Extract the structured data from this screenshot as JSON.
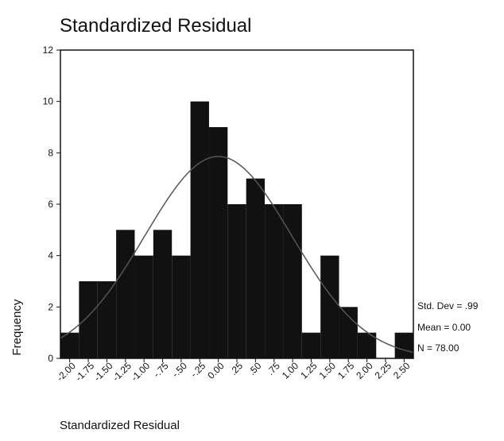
{
  "chart_data": {
    "type": "histogram",
    "title": "Standardized Residual",
    "x_label": "Standardized Residual",
    "y_label": "Frequency",
    "bins": [
      -2.125,
      -1.875,
      -1.625,
      -1.375,
      -1.125,
      -0.875,
      -0.625,
      -0.375,
      -0.125,
      0.125,
      0.375,
      0.625,
      0.875,
      1.125,
      1.375,
      1.625,
      1.875,
      2.125,
      2.375,
      2.625
    ],
    "values": [
      1,
      3,
      3,
      5,
      4,
      5,
      4,
      10,
      9,
      6,
      7,
      6,
      6,
      1,
      4,
      2,
      1,
      0,
      1
    ],
    "color": "#111111",
    "xlim": [
      -2.125,
      2.625
    ],
    "xticks": [
      {
        "value": -2,
        "label": "-2.00"
      },
      {
        "value": -1.75,
        "label": "-1.75"
      },
      {
        "value": -1.5,
        "label": "-1.50"
      },
      {
        "value": -1.25,
        "label": "-1.25"
      },
      {
        "value": -1,
        "label": "-1.00"
      },
      {
        "value": -0.75,
        "label": "-.75"
      },
      {
        "value": -0.5,
        "label": "-.50"
      },
      {
        "value": -0.25,
        "label": "-.25"
      },
      {
        "value": 0,
        "label": "0.00"
      },
      {
        "value": 0.25,
        "label": ".25"
      },
      {
        "value": 0.5,
        "label": ".50"
      },
      {
        "value": 0.75,
        "label": ".75"
      },
      {
        "value": 1,
        "label": "1.00"
      },
      {
        "value": 1.25,
        "label": "1.25"
      },
      {
        "value": 1.5,
        "label": "1.50"
      },
      {
        "value": 1.75,
        "label": "1.75"
      },
      {
        "value": 2,
        "label": "2.00"
      },
      {
        "value": 2.25,
        "label": "2.25"
      },
      {
        "value": 2.5,
        "label": "2.50"
      }
    ],
    "ylim": [
      0,
      12
    ],
    "yticks": [
      0,
      2,
      4,
      6,
      8,
      10,
      12
    ],
    "stats": {
      "sd": {
        "value": 0.99,
        "label": "Std. Dev = .99"
      },
      "mean": {
        "value": 0,
        "label": "Mean = 0.00"
      },
      "n": {
        "value": 78,
        "label": "N = 78.00"
      }
    },
    "curve_color": "#555555"
  }
}
